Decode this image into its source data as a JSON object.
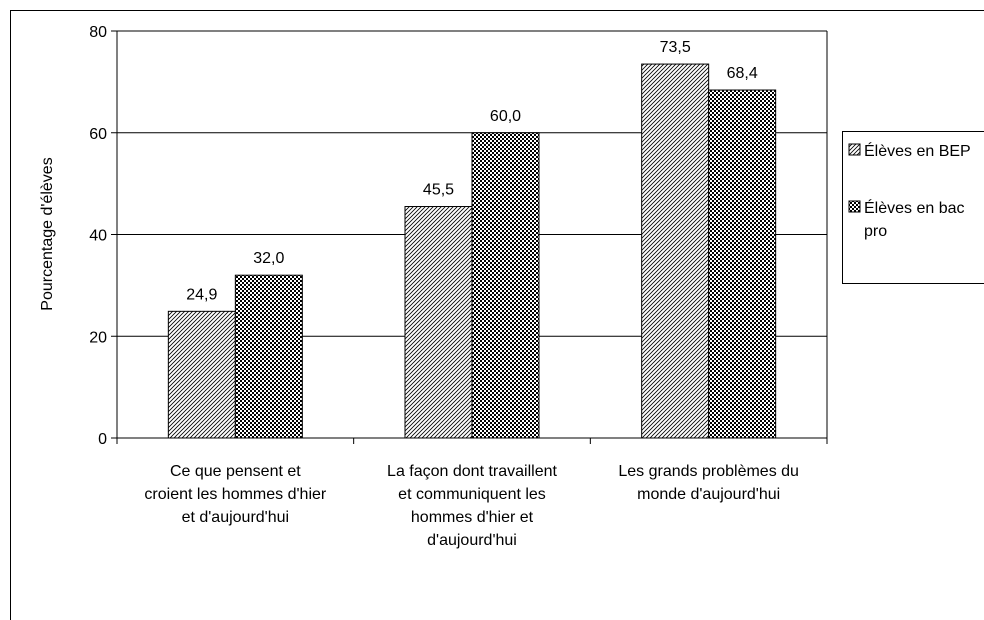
{
  "chart_data": {
    "type": "bar",
    "y_label": "Pourcentage d'élèves",
    "categories": [
      "Ce que pensent et croient les hommes d'hier et d'aujourd'hui",
      "La façon dont travaillent et communiquent les hommes d'hier et d'aujourd'hui",
      "Les grands problèmes du monde d'aujourd'hui"
    ],
    "series": [
      {
        "name": "Élèves en BEP",
        "color": "#000000",
        "values": [
          24.9,
          45.5,
          73.5
        ],
        "value_labels": [
          "24,9",
          "45,5",
          "73,5"
        ]
      },
      {
        "name": "Élèves en bac pro",
        "color": "#000000",
        "values": [
          32.0,
          60.0,
          68.4
        ],
        "value_labels": [
          "32,0",
          "60,0",
          "68,4"
        ]
      }
    ],
    "ylim": [
      0,
      80
    ],
    "yticks": [
      0,
      20,
      40,
      60,
      80
    ],
    "grid": true,
    "legend": "right"
  }
}
